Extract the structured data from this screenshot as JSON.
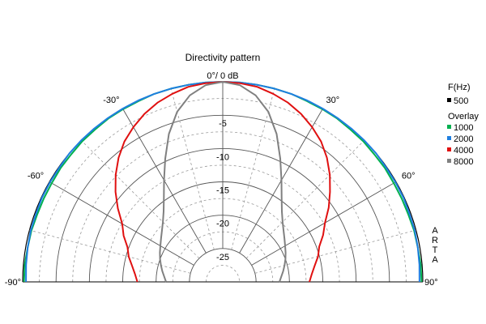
{
  "chart_data": {
    "type": "line",
    "subtype": "polar-half",
    "title": "Directivity pattern",
    "top_label": "0°/ 0 dB",
    "radial_axis": {
      "unit": "dB",
      "range": [
        -30,
        0
      ],
      "ticks": [
        -5,
        -10,
        -15,
        -20,
        -25
      ],
      "tick_labels": [
        "-5",
        "-10",
        "-15",
        "-20",
        "-25"
      ]
    },
    "angle_axis": {
      "range": [
        -90,
        90
      ],
      "labeled_angles": [
        -90,
        -60,
        -30,
        30,
        60,
        90
      ],
      "labels": [
        "-90°",
        "-60°",
        "-30°",
        "30°",
        "60°",
        "90°"
      ],
      "grid_step_deg": 15
    },
    "legend": {
      "position": "right",
      "header": "F(Hz)",
      "main_entry": {
        "label": "500",
        "color": "#000000"
      },
      "overlay_header": "Overlay",
      "overlay_entries": [
        {
          "label": "1000",
          "color": "#00b050"
        },
        {
          "label": "2000",
          "color": "#1f7fe0"
        },
        {
          "label": "4000",
          "color": "#e01010"
        },
        {
          "label": "8000",
          "color": "#808080"
        }
      ]
    },
    "watermark": "ARTA",
    "series": [
      {
        "name": "1000",
        "color": "#00b050",
        "angles": [
          -90,
          -85,
          -80,
          -75,
          -70,
          -65,
          -60,
          -55,
          -50,
          -45,
          -40,
          -35,
          -30,
          -25,
          -20,
          -15,
          -10,
          -5,
          0,
          5,
          10,
          15,
          20,
          25,
          30,
          35,
          40,
          45,
          50,
          55,
          60,
          65,
          70,
          75,
          80,
          85,
          90
        ],
        "db": [
          -0.2,
          -0.2,
          -0.3,
          -0.3,
          -0.4,
          -0.4,
          -0.4,
          -0.3,
          -0.3,
          -0.2,
          -0.2,
          -0.1,
          -0.1,
          -0.1,
          0,
          0,
          0,
          0,
          0,
          0,
          0,
          0,
          0,
          -0.1,
          -0.1,
          -0.1,
          -0.2,
          -0.2,
          -0.3,
          -0.3,
          -0.4,
          -0.4,
          -0.4,
          -0.3,
          -0.3,
          -0.2,
          -0.2
        ]
      },
      {
        "name": "2000",
        "color": "#1f7fe0",
        "angles": [
          -90,
          -85,
          -80,
          -75,
          -70,
          -65,
          -60,
          -55,
          -50,
          -45,
          -40,
          -35,
          -30,
          -25,
          -20,
          -15,
          -10,
          -5,
          0,
          5,
          10,
          15,
          20,
          25,
          30,
          35,
          40,
          45,
          50,
          55,
          60,
          65,
          70,
          75,
          80,
          85,
          90
        ],
        "db": [
          -0.5,
          -0.4,
          -0.3,
          -0.2,
          -0.2,
          -0.1,
          -0.1,
          -0.1,
          0,
          0,
          0,
          0,
          0,
          0,
          0,
          0,
          0,
          0,
          0,
          0,
          0,
          0,
          0,
          0,
          0,
          0,
          0,
          0,
          0,
          -0.1,
          -0.1,
          -0.1,
          -0.2,
          -0.2,
          -0.3,
          -0.4,
          -0.5
        ]
      },
      {
        "name": "4000",
        "color": "#e01010",
        "angles": [
          -90,
          -85,
          -80,
          -75,
          -70,
          -65,
          -60,
          -55,
          -50,
          -45,
          -40,
          -35,
          -30,
          -25,
          -20,
          -15,
          -10,
          -5,
          0,
          5,
          10,
          15,
          20,
          25,
          30,
          35,
          40,
          45,
          50,
          55,
          60,
          65,
          70,
          75,
          80,
          85,
          90
        ],
        "db": [
          -17.2,
          -16.8,
          -16.2,
          -15.4,
          -14.8,
          -13.6,
          -12.6,
          -10.8,
          -9.0,
          -7.3,
          -5.7,
          -4.3,
          -3.2,
          -2.2,
          -1.4,
          -0.8,
          -0.3,
          -0.1,
          0,
          -0.1,
          -0.3,
          -0.8,
          -1.4,
          -2.2,
          -3.2,
          -4.3,
          -5.7,
          -7.3,
          -9.0,
          -10.6,
          -12.3,
          -13.4,
          -14.6,
          -15.2,
          -16.0,
          -16.6,
          -17.0
        ]
      },
      {
        "name": "8000",
        "color": "#808080",
        "angles": [
          -90,
          -85,
          -80,
          -75,
          -70,
          -65,
          -60,
          -55,
          -50,
          -45,
          -40,
          -35,
          -30,
          -25,
          -20,
          -15,
          -10,
          -5,
          0,
          5,
          10,
          15,
          20,
          25,
          30,
          35,
          40,
          45,
          50,
          55,
          60,
          65,
          70,
          75,
          80,
          85,
          90
        ],
        "db": [
          -21.5,
          -21.2,
          -20.8,
          -20.4,
          -20.0,
          -19.6,
          -19.2,
          -18.7,
          -18.1,
          -17.3,
          -16.2,
          -14.6,
          -12.4,
          -9.6,
          -6.4,
          -3.6,
          -1.6,
          -0.4,
          0,
          -0.4,
          -1.6,
          -3.6,
          -6.4,
          -9.6,
          -12.4,
          -14.6,
          -16.2,
          -17.3,
          -18.1,
          -18.7,
          -19.2,
          -19.6,
          -20.0,
          -20.4,
          -20.8,
          -21.2,
          -21.5
        ]
      }
    ]
  }
}
